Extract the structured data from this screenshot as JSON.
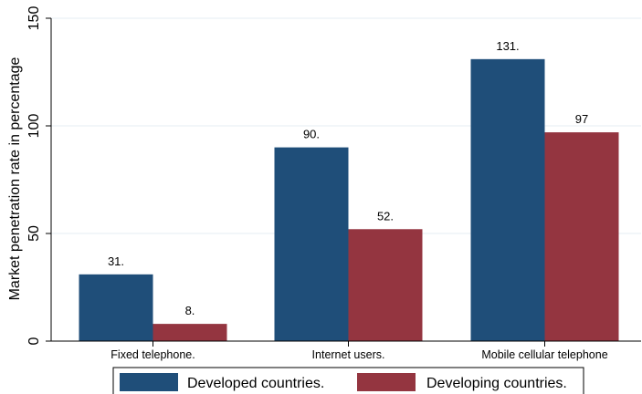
{
  "chart_data": {
    "type": "bar",
    "title": "",
    "xlabel": "",
    "ylabel": "Market penetration rate in percentage",
    "categories": [
      "Fixed telephone.",
      "Internet users.",
      "Mobile cellular telephone"
    ],
    "series": [
      {
        "name": "Developed countries.",
        "values": [
          31,
          90,
          131
        ],
        "labels": [
          "31.",
          "90.",
          "131."
        ],
        "color": "#1f4e79"
      },
      {
        "name": "Developing countries.",
        "values": [
          8,
          52,
          97
        ],
        "labels": [
          "8.",
          "52.",
          "97"
        ],
        "color": "#943540"
      }
    ],
    "ylim": [
      0,
      150
    ],
    "yticks": [
      0,
      50,
      100,
      150
    ],
    "ytick_labels": [
      "0",
      "50",
      "100",
      "150"
    ],
    "grid": true,
    "grid_color": "#e6eef3",
    "legend_position": "bottom",
    "colors": {
      "axis": "#000000",
      "legend_border": "#000000"
    }
  }
}
